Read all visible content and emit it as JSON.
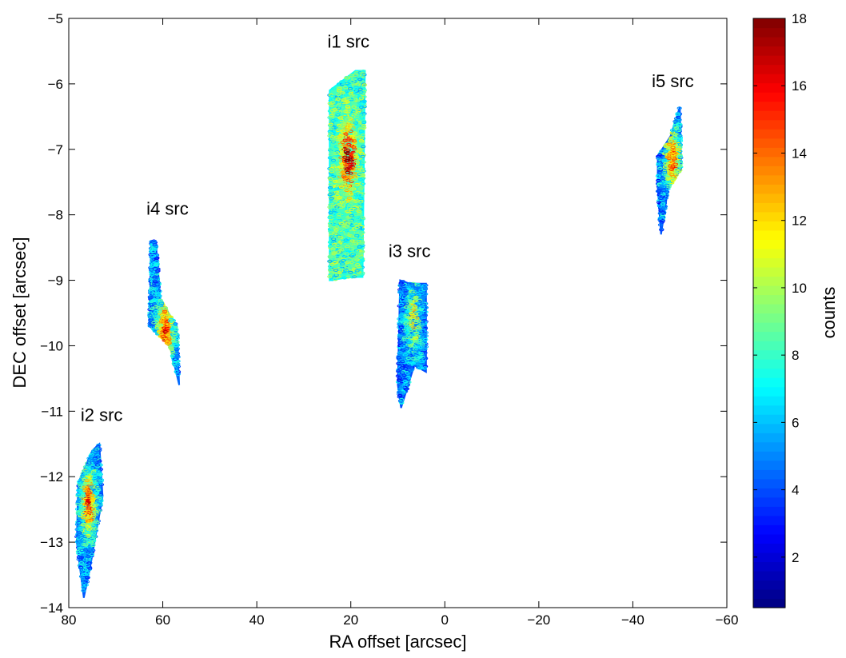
{
  "chart_data": {
    "type": "scatter",
    "title": "",
    "xlabel": "RA offset [arcsec]",
    "ylabel": "DEC offset [arcsec]",
    "xlim": [
      80,
      -60
    ],
    "ylim": [
      -14,
      -5
    ],
    "x_reversed": true,
    "grid": false,
    "xticks": [
      80,
      60,
      40,
      20,
      0,
      -20,
      -40,
      -60
    ],
    "xtick_labels": [
      "80",
      "60",
      "40",
      "20",
      "0",
      "−20",
      "−40",
      "−60"
    ],
    "yticks": [
      -5,
      -6,
      -7,
      -8,
      -9,
      -10,
      -11,
      -12,
      -13,
      -14
    ],
    "ytick_labels": [
      "−5",
      "−6",
      "−7",
      "−8",
      "−9",
      "−10",
      "−11",
      "−12",
      "−13",
      "−14"
    ],
    "colorbar": {
      "label": "counts",
      "range": [
        0.5,
        18
      ],
      "colormap": "jet",
      "ticks": [
        2,
        4,
        6,
        8,
        10,
        12,
        14,
        16,
        18
      ],
      "tick_labels": [
        "2",
        "4",
        "6",
        "8",
        "10",
        "12",
        "14",
        "16",
        "18"
      ]
    },
    "sources": [
      {
        "label": "i1 src",
        "label_at": [
          20.5,
          -5.35
        ],
        "base_counts": 8.2,
        "polygon": [
          [
            24.5,
            -6.1
          ],
          [
            19,
            -5.8
          ],
          [
            17,
            -5.8
          ],
          [
            17.5,
            -8.95
          ],
          [
            20,
            -8.95
          ],
          [
            24.5,
            -9.0
          ]
        ],
        "peak": {
          "x": 20.5,
          "y": -7.15,
          "counts": 17.5
        }
      },
      {
        "label": "i2 src",
        "label_at": [
          73,
          -11.05
        ],
        "base_counts": 5.2,
        "polygon": [
          [
            78,
            -12.1
          ],
          [
            75,
            -11.6
          ],
          [
            73.5,
            -11.5
          ],
          [
            72.8,
            -12.3
          ],
          [
            75.5,
            -13.4
          ],
          [
            76.8,
            -13.85
          ],
          [
            78.3,
            -13.0
          ]
        ],
        "peak": {
          "x": 75.8,
          "y": -12.4,
          "counts": 15
        }
      },
      {
        "label": "i3 src",
        "label_at": [
          7.5,
          -8.55
        ],
        "base_counts": 5.0,
        "polygon": [
          [
            9.5,
            -9.0
          ],
          [
            7.5,
            -9.05
          ],
          [
            4.0,
            -9.05
          ],
          [
            4.0,
            -10.4
          ],
          [
            6.5,
            -10.3
          ],
          [
            9.3,
            -10.95
          ],
          [
            10.0,
            -10.6
          ]
        ],
        "peak": {
          "x": 6.8,
          "y": -9.6,
          "counts": 11.5
        }
      },
      {
        "label": "i4 src",
        "label_at": [
          59,
          -7.9
        ],
        "base_counts": 5.5,
        "polygon": [
          [
            62.5,
            -8.4
          ],
          [
            61.5,
            -8.4
          ],
          [
            60.5,
            -9.3
          ],
          [
            57.0,
            -9.7
          ],
          [
            56.5,
            -10.6
          ],
          [
            58.5,
            -10.0
          ],
          [
            62.8,
            -9.7
          ]
        ],
        "peak": {
          "x": 59.5,
          "y": -9.8,
          "counts": 15
        }
      },
      {
        "label": "i5 src",
        "label_at": [
          -48.5,
          -5.95
        ],
        "base_counts": 5.2,
        "polygon": [
          [
            -50,
            -6.35
          ],
          [
            -48,
            -6.8
          ],
          [
            -45.3,
            -7.1
          ],
          [
            -45.3,
            -7.6
          ],
          [
            -46.0,
            -8.3
          ],
          [
            -47.5,
            -7.6
          ],
          [
            -50.3,
            -7.3
          ]
        ],
        "peak": {
          "x": -48.5,
          "y": -7.15,
          "counts": 14
        }
      }
    ]
  }
}
